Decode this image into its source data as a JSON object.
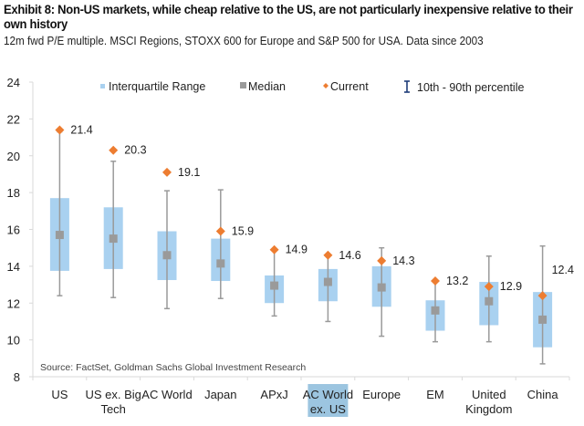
{
  "header": {
    "title": "Exhibit 8: Non-US markets, while cheap relative to the US, are not particularly inexpensive relative to their own history",
    "subtitle": "12m fwd P/E multiple. MSCI Regions, STOXX 600 for Europe and S&P 500 for USA. Data since 2003"
  },
  "chart_data": {
    "type": "box",
    "title": "Exhibit 8: Non-US markets, while cheap relative to the US, are not particularly inexpensive relative to their own history",
    "subtitle": "12m fwd P/E multiple. MSCI Regions, STOXX 600 for Europe and S&P 500 for USA. Data since 2003",
    "xlabel": "",
    "ylabel": "",
    "ylim": [
      8,
      24
    ],
    "yticks": [
      8,
      10,
      12,
      14,
      16,
      18,
      20,
      22,
      24
    ],
    "grid": false,
    "legend_position": "top",
    "legend": [
      "Interquartile Range",
      "Median",
      "Current",
      "10th - 90th percentile"
    ],
    "highlighted_category": "AC World ex. US",
    "categories": [
      "US",
      "US ex. Big Tech",
      "AC World",
      "Japan",
      "APxJ",
      "AC World ex. US",
      "Europe",
      "EM",
      "United Kingdom",
      "China"
    ],
    "category_lines": [
      [
        "US"
      ],
      [
        "US ex. Big",
        "Tech"
      ],
      [
        "AC World"
      ],
      [
        "Japan"
      ],
      [
        "APxJ"
      ],
      [
        "AC World",
        "ex. US"
      ],
      [
        "Europe"
      ],
      [
        "EM"
      ],
      [
        "United",
        "Kingdom"
      ],
      [
        "China"
      ]
    ],
    "series": [
      {
        "name": "10th percentile",
        "values": [
          12.4,
          12.3,
          11.7,
          12.25,
          11.3,
          11.0,
          10.2,
          9.9,
          9.9,
          8.7
        ]
      },
      {
        "name": "25th percentile",
        "values": [
          13.75,
          13.85,
          13.25,
          13.2,
          12.0,
          12.1,
          11.8,
          10.5,
          10.8,
          9.6
        ]
      },
      {
        "name": "Median",
        "values": [
          15.7,
          15.5,
          14.6,
          14.15,
          12.95,
          13.15,
          12.85,
          11.6,
          12.1,
          11.1
        ]
      },
      {
        "name": "75th percentile",
        "values": [
          17.7,
          17.2,
          15.9,
          15.5,
          13.5,
          13.85,
          14.0,
          12.15,
          13.15,
          12.6
        ]
      },
      {
        "name": "90th percentile",
        "values": [
          21.3,
          19.7,
          18.1,
          18.15,
          14.9,
          14.6,
          15.0,
          13.2,
          14.55,
          15.1
        ]
      },
      {
        "name": "Current",
        "values": [
          21.4,
          20.3,
          19.1,
          15.9,
          14.9,
          14.6,
          14.3,
          13.2,
          12.9,
          12.4
        ]
      }
    ],
    "current_labels": [
      "21.4",
      "20.3",
      "19.1",
      "15.9",
      "14.9",
      "14.6",
      "14.3",
      "13.2",
      "12.9",
      "12.4"
    ],
    "annotation": "Source: FactSet, Goldman Sachs Global Investment Research"
  },
  "colors": {
    "box": "#a9d1f0",
    "median": "#9a9a9a",
    "whisker": "#9a9a9a",
    "current": "#ed7d31",
    "legend_whisker": "#1f3d7a",
    "highlight": "#9cc5e0",
    "axis": "#d9d9d9"
  }
}
